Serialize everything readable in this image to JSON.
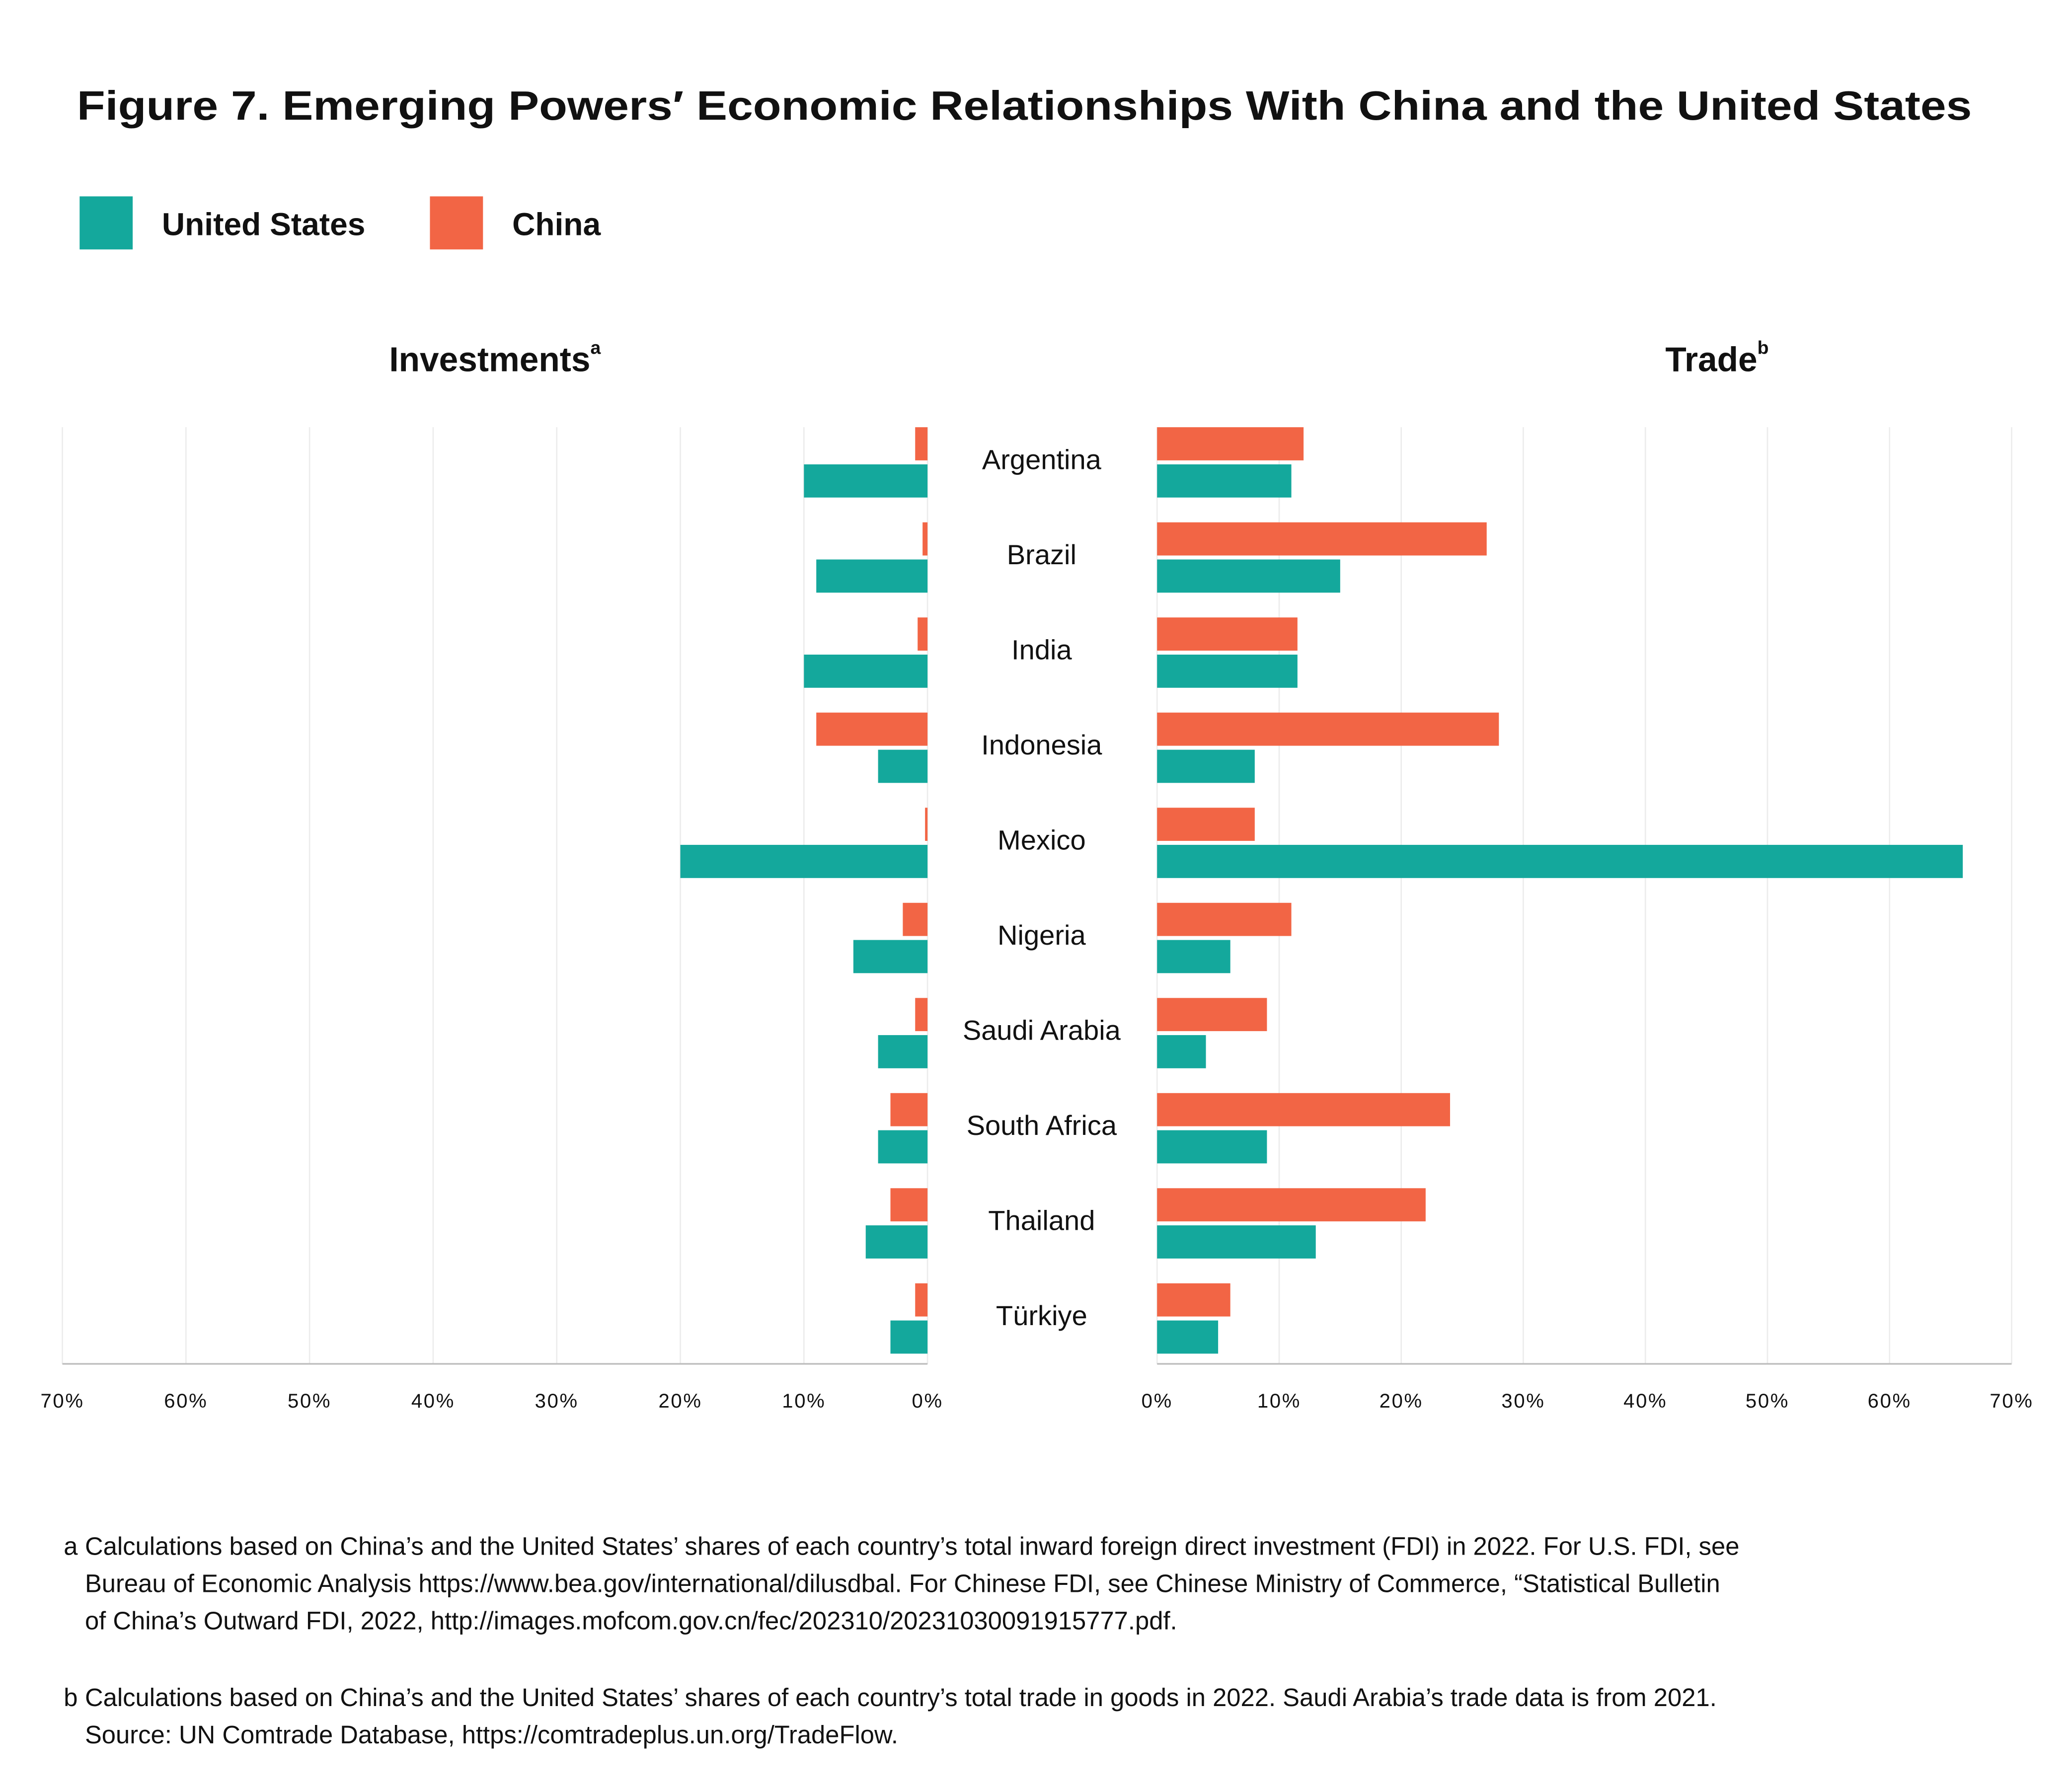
{
  "title": "Figure 7. Emerging Powers′ Economic Relationships With China and the United States",
  "categories": [
    "Argentina",
    "Brazil",
    "India",
    "Indonesia",
    "Mexico",
    "Nigeria",
    "Saudi Arabia",
    "South Africa",
    "Thailand",
    "Türkiye"
  ],
  "chart_data": [
    {
      "type": "bar",
      "title": "Investments",
      "title_note": "a",
      "x_reversed": true,
      "xlim": [
        0,
        70
      ],
      "xticks": [
        {
          "value": 0,
          "label": "0%"
        },
        {
          "value": 10,
          "label": "10%"
        },
        {
          "value": 20,
          "label": "20%"
        },
        {
          "value": 30,
          "label": "30%"
        },
        {
          "value": 40,
          "label": "40%"
        },
        {
          "value": 50,
          "label": "50%"
        },
        {
          "value": 60,
          "label": "60%"
        },
        {
          "value": 70,
          "label": "70%"
        }
      ],
      "grid": true,
      "series": [
        {
          "name": "United States",
          "color": "#14a89c",
          "values": [
            10,
            9,
            10,
            4,
            20,
            6,
            4,
            4,
            5,
            3
          ]
        },
        {
          "name": "China",
          "color": "#f26545",
          "values": [
            1,
            0.4,
            0.8,
            9,
            0.2,
            2,
            1,
            3,
            3,
            1
          ]
        }
      ]
    },
    {
      "type": "bar",
      "title": "Trade",
      "title_note": "b",
      "x_reversed": false,
      "xlim": [
        0,
        70
      ],
      "xticks": [
        {
          "value": 0,
          "label": "0%"
        },
        {
          "value": 10,
          "label": "10%"
        },
        {
          "value": 20,
          "label": "20%"
        },
        {
          "value": 30,
          "label": "30%"
        },
        {
          "value": 40,
          "label": "40%"
        },
        {
          "value": 50,
          "label": "50%"
        },
        {
          "value": 60,
          "label": "60%"
        },
        {
          "value": 70,
          "label": "70%"
        }
      ],
      "grid": true,
      "series": [
        {
          "name": "United States",
          "color": "#14a89c",
          "values": [
            11,
            15,
            11.5,
            8,
            66,
            6,
            4,
            9,
            13,
            5
          ]
        },
        {
          "name": "China",
          "color": "#f26545",
          "values": [
            12,
            27,
            11.5,
            28,
            8,
            11,
            9,
            24,
            22,
            6
          ]
        }
      ]
    }
  ],
  "footnotes": [
    {
      "marker": "a",
      "lines": [
        "Calculations based on China’s and the United States’ shares of each country’s total inward foreign direct investment (FDI) in 2022. For U.S. FDI, see",
        "Bureau of Economic Analysis https://www.bea.gov/international/dilusdbal. For Chinese FDI, see Chinese Ministry of Commerce, “Statistical Bulletin",
        "of China’s Outward FDI, 2022, http://images.mofcom.gov.cn/fec/202310/20231030091915777.pdf."
      ]
    },
    {
      "marker": "b",
      "lines": [
        "Calculations based on China’s and the United States’ shares of each country’s total trade in goods in 2022. Saudi Arabia’s trade data is from 2021.",
        "Source: UN Comtrade Database, https://comtradeplus.un.org/TradeFlow."
      ]
    }
  ]
}
